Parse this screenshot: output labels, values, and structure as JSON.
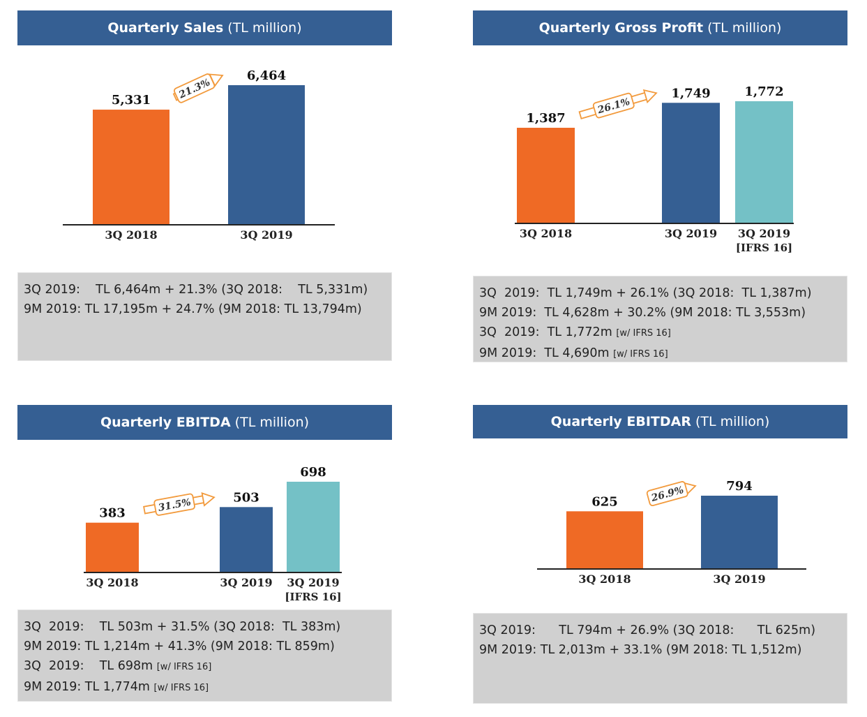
{
  "colors": {
    "header": "#355f93",
    "orange": "#ef6a25",
    "blue": "#355f93",
    "teal": "#74c1c6",
    "arrow": "#f29a3c"
  },
  "panels": [
    {
      "title": "Quarterly Sales",
      "unit": "(TL million)",
      "growth": "21.3%",
      "notes": [
        {
          "text": "3Q 2019:    TL 6,464m + 21.3% (3Q 2018:    TL 5,331m)",
          "tag": ""
        },
        {
          "text": "9M 2019: TL 17,195m + 24.7% (9M 2018: TL 13,794m)",
          "tag": ""
        }
      ]
    },
    {
      "title": "Quarterly Gross Profit",
      "unit": "(TL million)",
      "growth": "26.1%",
      "notes": [
        {
          "text": "3Q  2019:  TL 1,749m + 26.1% (3Q 2018:  TL 1,387m)",
          "tag": ""
        },
        {
          "text": "9M 2019:  TL 4,628m + 30.2% (9M 2018: TL 3,553m)",
          "tag": ""
        },
        {
          "text": "3Q  2019:  TL 1,772m ",
          "tag": "[w/ IFRS 16]"
        },
        {
          "text": "9M 2019:  TL 4,690m ",
          "tag": "[w/ IFRS 16]"
        }
      ]
    },
    {
      "title": "Quarterly EBITDA",
      "unit": "(TL million)",
      "growth": "31.5%",
      "notes": [
        {
          "text": "3Q  2019:    TL 503m + 31.5% (3Q 2018:  TL 383m)",
          "tag": ""
        },
        {
          "text": "9M 2019: TL 1,214m + 41.3% (9M 2018: TL 859m)",
          "tag": ""
        },
        {
          "text": "3Q  2019:    TL 698m ",
          "tag": "[w/ IFRS 16]"
        },
        {
          "text": "9M 2019: TL 1,774m ",
          "tag": "[w/ IFRS 16]"
        }
      ]
    },
    {
      "title": "Quarterly EBITDAR",
      "unit": "(TL million)",
      "growth": "26.9%",
      "notes": [
        {
          "text": "3Q 2019:      TL 794m + 26.9% (3Q 2018:      TL 625m)",
          "tag": ""
        },
        {
          "text": "9M 2019: TL 2,013m + 33.1% (9M 2018: TL 1,512m)",
          "tag": ""
        }
      ]
    }
  ],
  "chart_data": [
    {
      "type": "bar",
      "title": "Quarterly Sales (TL million)",
      "categories": [
        "3Q 2018",
        "3Q 2019"
      ],
      "values": [
        5331,
        6464
      ],
      "labels": [
        "5,331",
        "6,464"
      ],
      "colors": [
        "#ef6a25",
        "#355f93"
      ],
      "growth_label": "21.3%"
    },
    {
      "type": "bar",
      "title": "Quarterly Gross Profit (TL million)",
      "categories": [
        "3Q 2018",
        "3Q 2019",
        "3Q 2019 [IFRS 16]"
      ],
      "values": [
        1387,
        1749,
        1772
      ],
      "labels": [
        "1,387",
        "1,749",
        "1,772"
      ],
      "colors": [
        "#ef6a25",
        "#355f93",
        "#74c1c6"
      ],
      "growth_label": "26.1%"
    },
    {
      "type": "bar",
      "title": "Quarterly EBITDA (TL million)",
      "categories": [
        "3Q 2018",
        "3Q 2019",
        "3Q 2019 [IFRS 16]"
      ],
      "values": [
        383,
        503,
        698
      ],
      "labels": [
        "383",
        "503",
        "698"
      ],
      "colors": [
        "#ef6a25",
        "#355f93",
        "#74c1c6"
      ],
      "growth_label": "31.5%"
    },
    {
      "type": "bar",
      "title": "Quarterly EBITDAR (TL million)",
      "categories": [
        "3Q 2018",
        "3Q 2019"
      ],
      "values": [
        625,
        794
      ],
      "labels": [
        "625",
        "794"
      ],
      "colors": [
        "#ef6a25",
        "#355f93"
      ],
      "growth_label": "26.9%"
    }
  ]
}
